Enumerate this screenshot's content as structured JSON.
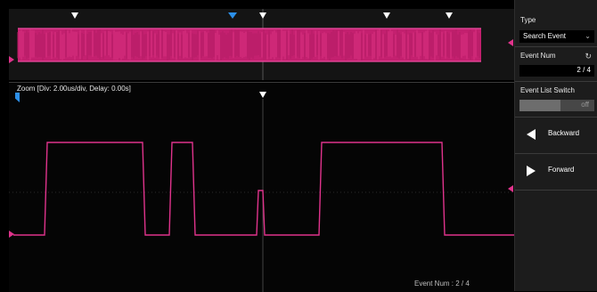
{
  "trace": {
    "color": "#e0338c"
  },
  "zoom_window": {
    "info": "Zoom [Div: 2.00us/div,  Delay: 0.00s]"
  },
  "status": {
    "event_num_text": "Event Num : 2 / 4"
  },
  "side_panel": {
    "type_label": "Type",
    "type_value": "Search Event",
    "event_num_label": "Event Num",
    "event_num_value": "2 / 4",
    "switch_label": "Event List Switch",
    "switch_value": "off",
    "backward_label": "Backward",
    "forward_label": "Forward"
  },
  "icons": {
    "refresh": "refresh-icon",
    "backward": "triangle-left-icon",
    "forward": "triangle-right-icon",
    "dropdown": "chevron-down-icon"
  }
}
